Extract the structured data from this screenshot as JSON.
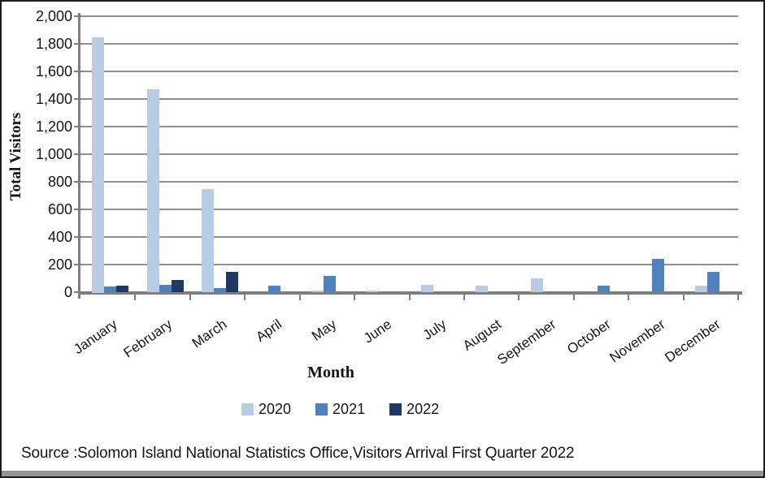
{
  "source_text": "Source :Solomon Island National Statistics Office,Visitors Arrival First Quarter 2022",
  "chart_data": {
    "type": "bar",
    "title": "",
    "xlabel": "Month",
    "ylabel": "Total Visitors",
    "ylim": [
      0,
      2000
    ],
    "ytick_interval": 200,
    "yticks": [
      0,
      200,
      400,
      600,
      800,
      1000,
      1200,
      1400,
      1600,
      1800,
      2000
    ],
    "ytick_labels": [
      "0",
      "200",
      "400",
      "600",
      "800",
      "1,000",
      "1,200",
      "1,400",
      "1,600",
      "1,800",
      "2,000"
    ],
    "grid": true,
    "gridline_color": "#8f8f8f",
    "axis_color": "#7f7f7f",
    "legend_position": "bottom",
    "categories": [
      "January",
      "February",
      "March",
      "April",
      "May",
      "June",
      "July",
      "August",
      "September",
      "October",
      "November",
      "December"
    ],
    "series": [
      {
        "name": "2020",
        "color": "#b8cce4",
        "values": [
          1850,
          1470,
          745,
          0,
          10,
          10,
          55,
          45,
          100,
          0,
          0,
          45
        ]
      },
      {
        "name": "2021",
        "color": "#4f81bd",
        "values": [
          40,
          55,
          30,
          50,
          120,
          0,
          0,
          0,
          0,
          45,
          240,
          145
        ]
      },
      {
        "name": "2022",
        "color": "#1f3864",
        "values": [
          45,
          90,
          145,
          0,
          0,
          0,
          0,
          0,
          0,
          0,
          0,
          0
        ]
      }
    ]
  }
}
